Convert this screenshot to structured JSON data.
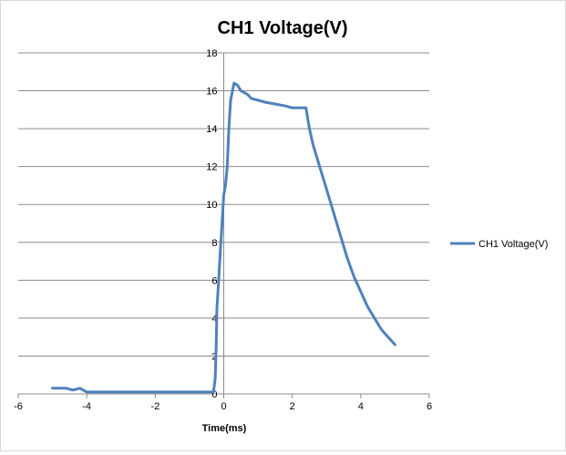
{
  "chart_data": {
    "type": "scatter",
    "title": "CH1 Voltage(V)",
    "xlabel": "Time(ms)",
    "ylabel": "",
    "xlim": [
      -6,
      6
    ],
    "ylim": [
      0,
      18
    ],
    "x_ticks": [
      -6,
      -4,
      -2,
      0,
      2,
      4,
      6
    ],
    "y_ticks": [
      0,
      2,
      4,
      6,
      8,
      10,
      12,
      14,
      16,
      18
    ],
    "x_tick_labels": [
      "-6",
      "-4",
      "-2",
      "0",
      "2",
      "4",
      "6"
    ],
    "y_tick_labels": [
      "0",
      "2",
      "4",
      "6",
      "8",
      "10",
      "12",
      "14",
      "16",
      "18"
    ],
    "grid": "horizontal major gridlines",
    "legend": "right",
    "series": [
      {
        "name": "CH1 Voltage(V)",
        "color": "#4f81bd",
        "x": [
          -5.0,
          -4.8,
          -4.6,
          -4.4,
          -4.2,
          -4.0,
          -3.8,
          -3.6,
          -3.4,
          -3.2,
          -3.0,
          -2.5,
          -2.0,
          -1.5,
          -1.0,
          -0.5,
          -0.3,
          -0.25,
          -0.22,
          -0.2,
          -0.15,
          -0.1,
          -0.05,
          0.0,
          0.05,
          0.1,
          0.15,
          0.2,
          0.3,
          0.4,
          0.5,
          0.7,
          0.8,
          1.0,
          1.2,
          1.5,
          1.8,
          2.0,
          2.4,
          2.5,
          2.6,
          2.8,
          3.0,
          3.2,
          3.4,
          3.6,
          3.8,
          4.0,
          4.2,
          4.4,
          4.6,
          4.8,
          5.0
        ],
        "y": [
          0.3,
          0.3,
          0.3,
          0.2,
          0.3,
          0.1,
          0.1,
          0.1,
          0.1,
          0.1,
          0.1,
          0.1,
          0.1,
          0.1,
          0.1,
          0.1,
          0.1,
          0.8,
          2.5,
          4.5,
          6.0,
          7.5,
          9.0,
          10.5,
          11.0,
          12.0,
          14.0,
          15.5,
          16.4,
          16.3,
          16.0,
          15.8,
          15.6,
          15.5,
          15.4,
          15.3,
          15.2,
          15.1,
          15.1,
          14.0,
          13.2,
          12.0,
          10.8,
          9.6,
          8.4,
          7.2,
          6.2,
          5.4,
          4.6,
          4.0,
          3.4,
          3.0,
          2.6
        ]
      }
    ]
  }
}
